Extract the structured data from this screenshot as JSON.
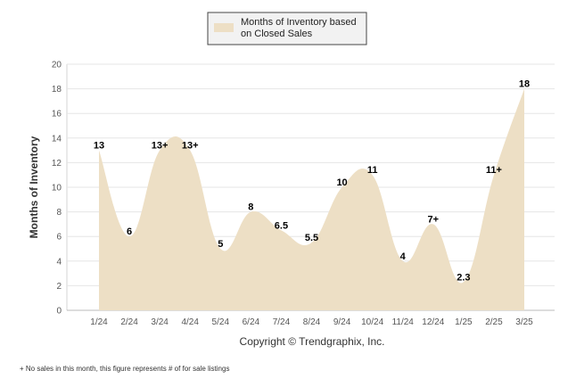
{
  "chart_data": {
    "type": "area",
    "categories": [
      "1/24",
      "2/24",
      "3/24",
      "4/24",
      "5/24",
      "6/24",
      "7/24",
      "8/24",
      "9/24",
      "10/24",
      "11/24",
      "12/24",
      "1/25",
      "2/25",
      "3/25"
    ],
    "series": [
      {
        "name": "Months of Inventory based on Closed Sales",
        "values": [
          13,
          6,
          13,
          13,
          5,
          8,
          6.5,
          5.5,
          10,
          11,
          4,
          7,
          2.3,
          11,
          18
        ],
        "labels": [
          "13",
          "6",
          "13+",
          "13+",
          "5",
          "8",
          "6.5",
          "5.5",
          "10",
          "11",
          "4",
          "7+",
          "2.3",
          "11+",
          "18"
        ]
      }
    ],
    "ylabel": "Months of Inventory",
    "ylim": [
      0,
      20
    ],
    "yticks": [
      0,
      2,
      4,
      6,
      8,
      10,
      12,
      14,
      16,
      18,
      20
    ],
    "grid": true,
    "legend_position": "top-center",
    "fill_color": "#eddfc5",
    "copyright": "Copyright © Trendgraphix, Inc.",
    "footnote": "+  No sales in this month, this figure represents # of for sale listings"
  }
}
